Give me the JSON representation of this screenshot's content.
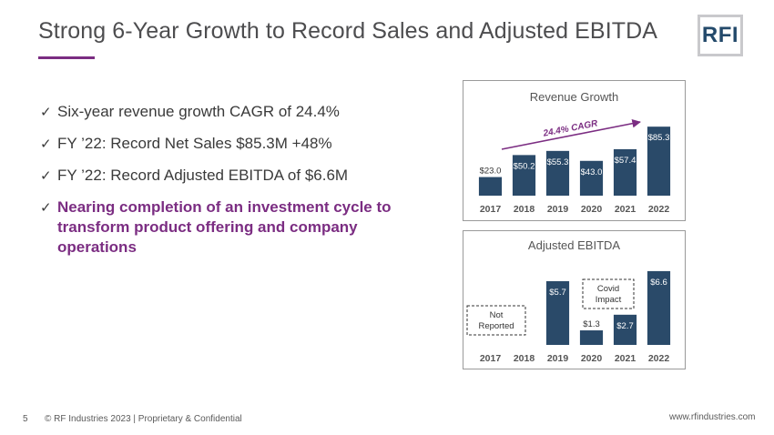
{
  "slide": {
    "title": "Strong 6-Year Growth to Record Sales and Adjusted EBITDA",
    "logo_text": "RFI",
    "bullets": [
      {
        "text": "Six-year revenue growth CAGR of 24.4%",
        "highlight": false
      },
      {
        "text": "FY ’22: Record Net Sales $85.3M +48%",
        "highlight": false
      },
      {
        "text": "FY ’22: Record Adjusted EBITDA of $6.6M",
        "highlight": false
      },
      {
        "text": "Nearing completion of an investment cycle to transform product offering and company operations",
        "highlight": true
      }
    ],
    "check_glyph": "✓",
    "colors": {
      "accent": "#7b2d82",
      "bar": "#2a4a69",
      "text": "#4d4d4f"
    }
  },
  "footer": {
    "page_number": "5",
    "copyright": "© RF Industries 2023 | Proprietary & Confidential",
    "url": "www.rfindustries.com"
  },
  "chart_data": [
    {
      "type": "bar",
      "title": "Revenue  Growth",
      "categories": [
        "2017",
        "2018",
        "2019",
        "2020",
        "2021",
        "2022"
      ],
      "values": [
        23.0,
        50.2,
        55.3,
        43.0,
        57.4,
        85.3
      ],
      "labels": [
        "$23.0",
        "$50.2",
        "$55.3",
        "$43.0",
        "$57.4",
        "$85.3"
      ],
      "ylim": [
        0,
        90
      ],
      "annotations": [
        {
          "text": "24.4% CAGR",
          "style": "arrow"
        }
      ]
    },
    {
      "type": "bar",
      "title": "Adjusted EBITDA",
      "categories": [
        "2017",
        "2018",
        "2019",
        "2020",
        "2021",
        "2022"
      ],
      "values": [
        null,
        null,
        5.7,
        1.3,
        2.7,
        6.6
      ],
      "labels": [
        "",
        "",
        "$5.7",
        "$1.3",
        "$2.7",
        "$6.6"
      ],
      "ylim": [
        0,
        7
      ],
      "annotations": [
        {
          "text": "Not Reported",
          "style": "dashed-box"
        },
        {
          "text": "Covid Impact",
          "style": "dashed-box"
        }
      ]
    }
  ]
}
